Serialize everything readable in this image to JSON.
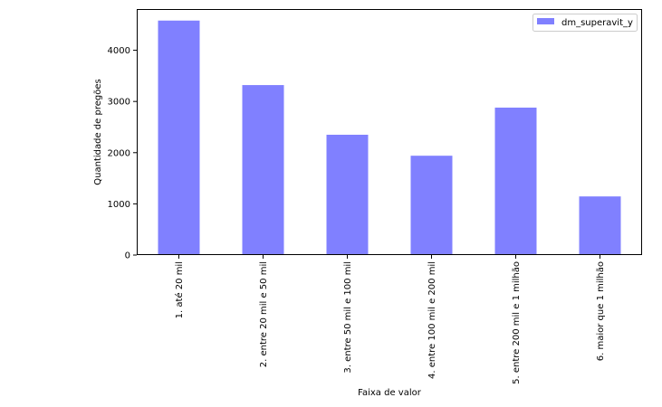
{
  "chart_data": {
    "type": "bar",
    "title": "",
    "xlabel": "Faixa de valor",
    "ylabel": "Quantidade de pregões",
    "categories": [
      "1. até 20 mil",
      "2. entre 20 mil e 50 mil",
      "3. entre 50 mil e 100 mil",
      "4. entre 100 mil e 200 mil",
      "5. entre 200 mil e 1 milhão",
      "6. maior que 1 milhão"
    ],
    "series": [
      {
        "name": "dm_superavit_y",
        "values": [
          4580,
          3320,
          2350,
          1940,
          2880,
          1145
        ],
        "color": "#8080ff"
      }
    ],
    "ylim": [
      0,
      4805
    ],
    "yticks": [
      0,
      1000,
      2000,
      3000,
      4000
    ],
    "grid": false,
    "legend": "top-right"
  }
}
